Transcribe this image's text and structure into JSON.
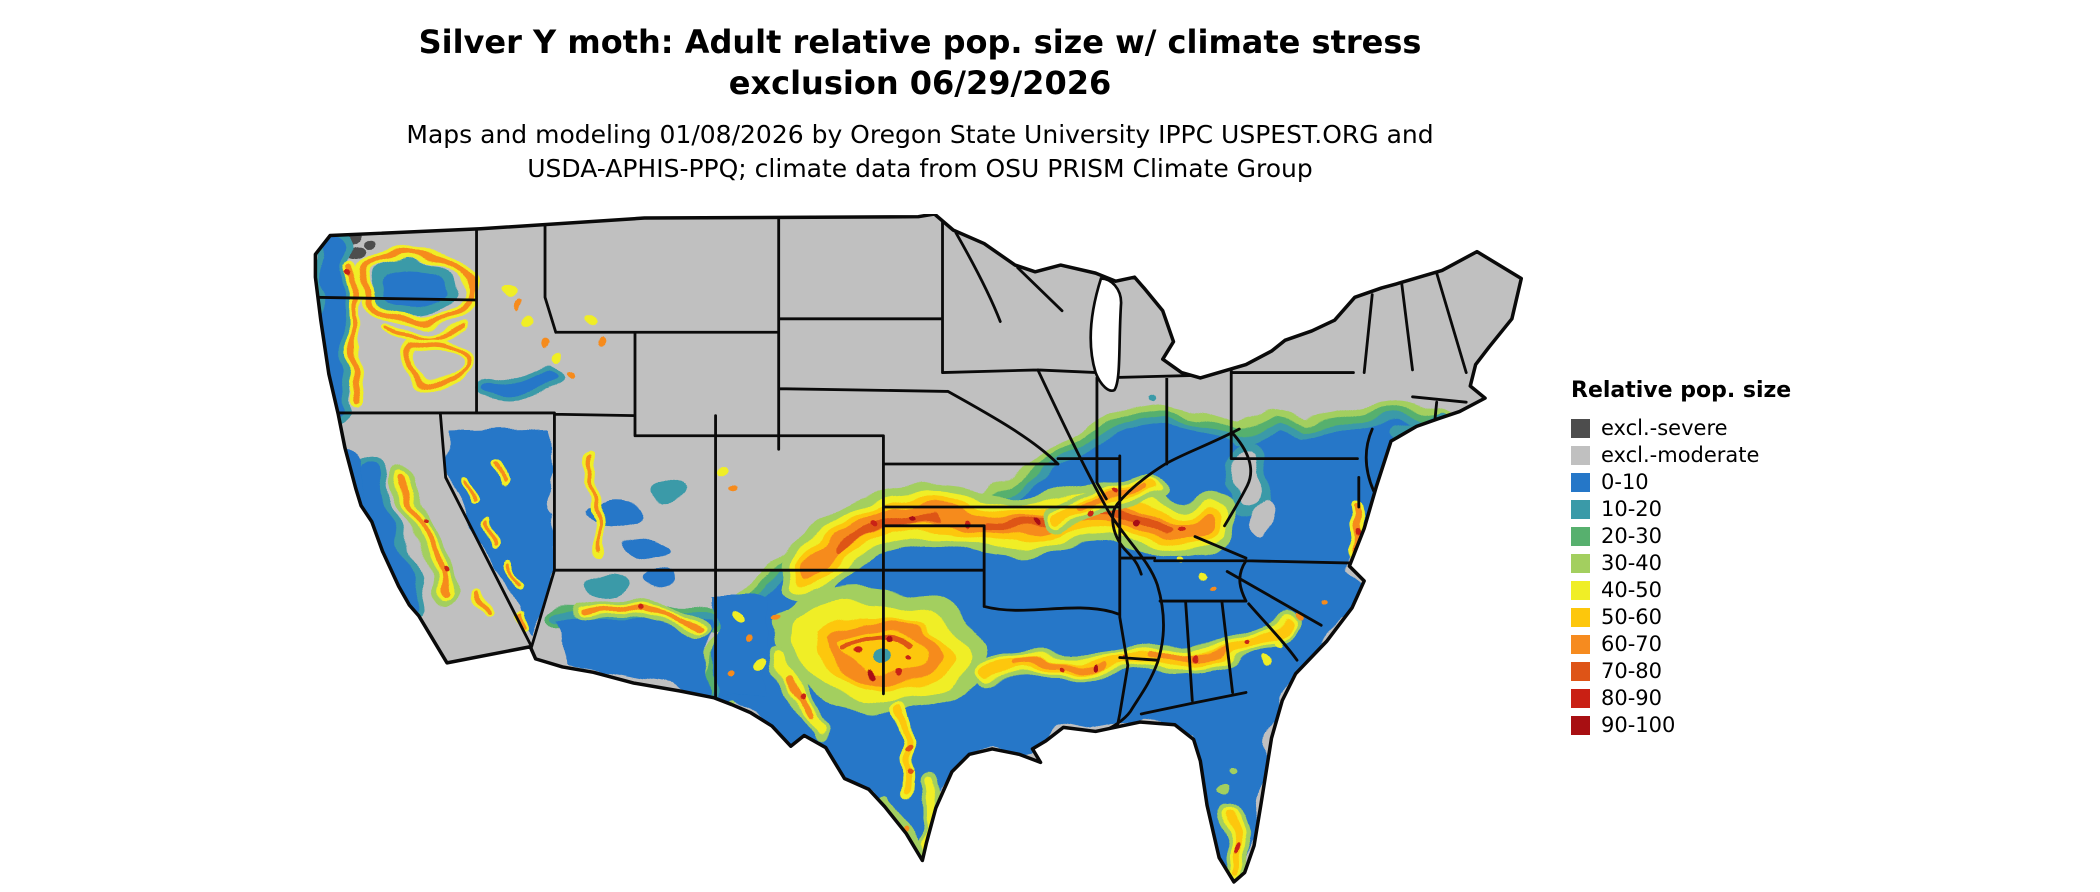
{
  "title": {
    "line1": "Silver Y moth: Adult relative pop. size w/ climate stress",
    "line2": "exclusion 06/29/2026"
  },
  "subtitle": {
    "line1": "Maps and modeling 01/08/2026 by Oregon State University IPPC USPEST.ORG and",
    "line2": "USDA-APHIS-PPQ; climate data from OSU PRISM Climate Group"
  },
  "legend": {
    "title": "Relative pop. size",
    "items": [
      {
        "label": "excl.-severe",
        "color": "#4d4d4d"
      },
      {
        "label": "excl.-moderate",
        "color": "#c0c0c0"
      },
      {
        "label": "0-10",
        "color": "#2577c8"
      },
      {
        "label": "10-20",
        "color": "#3a9aa8"
      },
      {
        "label": "20-30",
        "color": "#57b06e"
      },
      {
        "label": "30-40",
        "color": "#a3cf5f"
      },
      {
        "label": "40-50",
        "color": "#f0ee26"
      },
      {
        "label": "50-60",
        "color": "#fdc70c"
      },
      {
        "label": "60-70",
        "color": "#f68b1f"
      },
      {
        "label": "70-80",
        "color": "#de5417"
      },
      {
        "label": "80-90",
        "color": "#c92014"
      },
      {
        "label": "90-100",
        "color": "#a80f12"
      }
    ]
  }
}
